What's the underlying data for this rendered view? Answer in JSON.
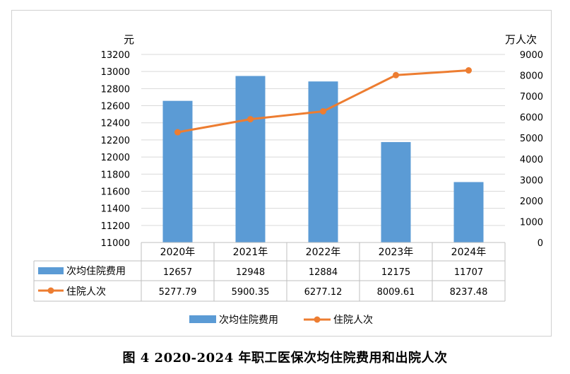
{
  "caption": "图 4   2020-2024 年职工医保次均住院费用和出院人次",
  "chart_data": {
    "type": "bar",
    "categories": [
      "2020年",
      "2021年",
      "2022年",
      "2023年",
      "2024年"
    ],
    "series": [
      {
        "name": "次均住院费用",
        "kind": "bar",
        "axis": "left",
        "values": [
          12657,
          12948,
          12884,
          12175,
          11707
        ],
        "labels": [
          "12657",
          "12948",
          "12884",
          "12175",
          "11707"
        ],
        "color": "#5B9BD5"
      },
      {
        "name": "住院人次",
        "kind": "line",
        "axis": "right",
        "values": [
          5277.79,
          5900.35,
          6277.12,
          8009.61,
          8237.48
        ],
        "labels": [
          "5277.79",
          "5900.35",
          "6277.12",
          "8009.61",
          "8237.48"
        ],
        "color": "#ED7D31"
      }
    ],
    "y_left": {
      "unit": "元",
      "range": [
        11000,
        13200
      ],
      "ticks": [
        11000,
        11200,
        11400,
        11600,
        11800,
        12000,
        12200,
        12400,
        12600,
        12800,
        13000,
        13200
      ]
    },
    "y_right": {
      "unit": "万人次",
      "range": [
        0,
        9000
      ],
      "ticks": [
        0,
        1000,
        2000,
        3000,
        4000,
        5000,
        6000,
        7000,
        8000,
        9000
      ]
    },
    "grid": true,
    "legend_position": "bottom",
    "data_table": true
  }
}
